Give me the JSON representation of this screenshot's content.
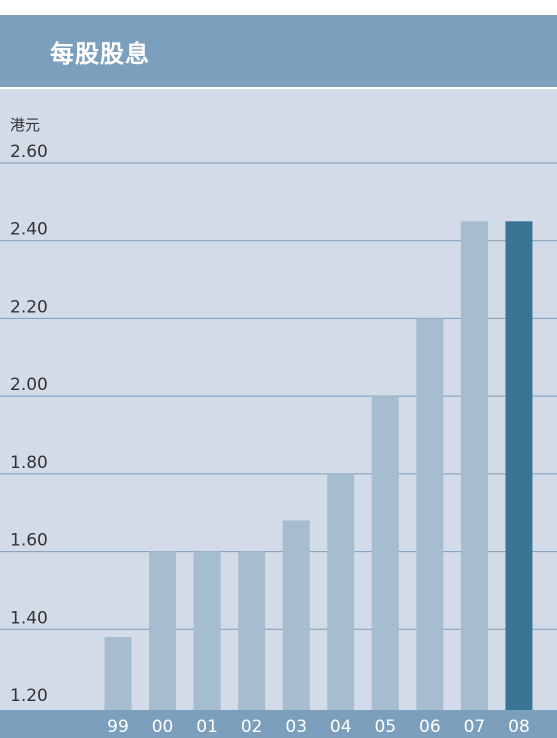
{
  "header": {
    "title": "每股股息"
  },
  "chart_data": {
    "type": "bar",
    "title": "每股股息",
    "ylabel": "港元",
    "xlabel": "",
    "categories": [
      "99",
      "00",
      "01",
      "02",
      "03",
      "04",
      "05",
      "06",
      "07",
      "08"
    ],
    "values": [
      1.38,
      1.6,
      1.6,
      1.6,
      1.68,
      1.8,
      2.0,
      2.2,
      2.45,
      2.45
    ],
    "ylim": [
      1.2,
      2.6
    ],
    "yticks": [
      "1.20",
      "1.40",
      "1.60",
      "1.80",
      "2.00",
      "2.20",
      "2.40",
      "2.60"
    ],
    "grid": true,
    "colors": {
      "bar": "#a6bccf",
      "highlight": "#3a7596",
      "background": "#d3dbe8",
      "header": "#7b9fbd",
      "gridline": "#7f9bb8"
    },
    "highlight_category": "08"
  }
}
